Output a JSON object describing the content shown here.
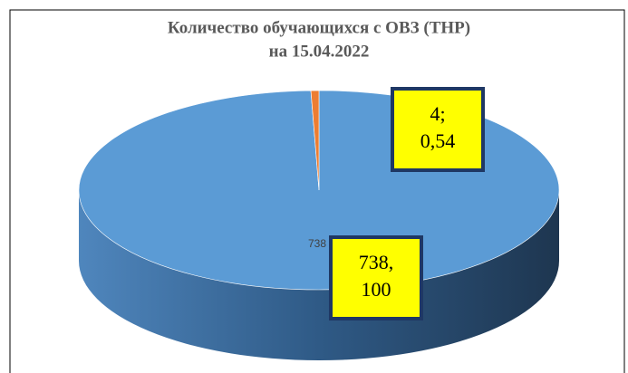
{
  "chart_data": {
    "type": "pie3d",
    "title": [
      "Количество обучающихся с ОВЗ (ТНР)",
      "на 15.04.2022"
    ],
    "values": [
      738,
      4
    ],
    "value_labels": [
      [
        "738,",
        "100"
      ],
      [
        "4;",
        "0,54"
      ]
    ],
    "colors": [
      "#5b9bd5",
      "#ed7d31"
    ]
  }
}
